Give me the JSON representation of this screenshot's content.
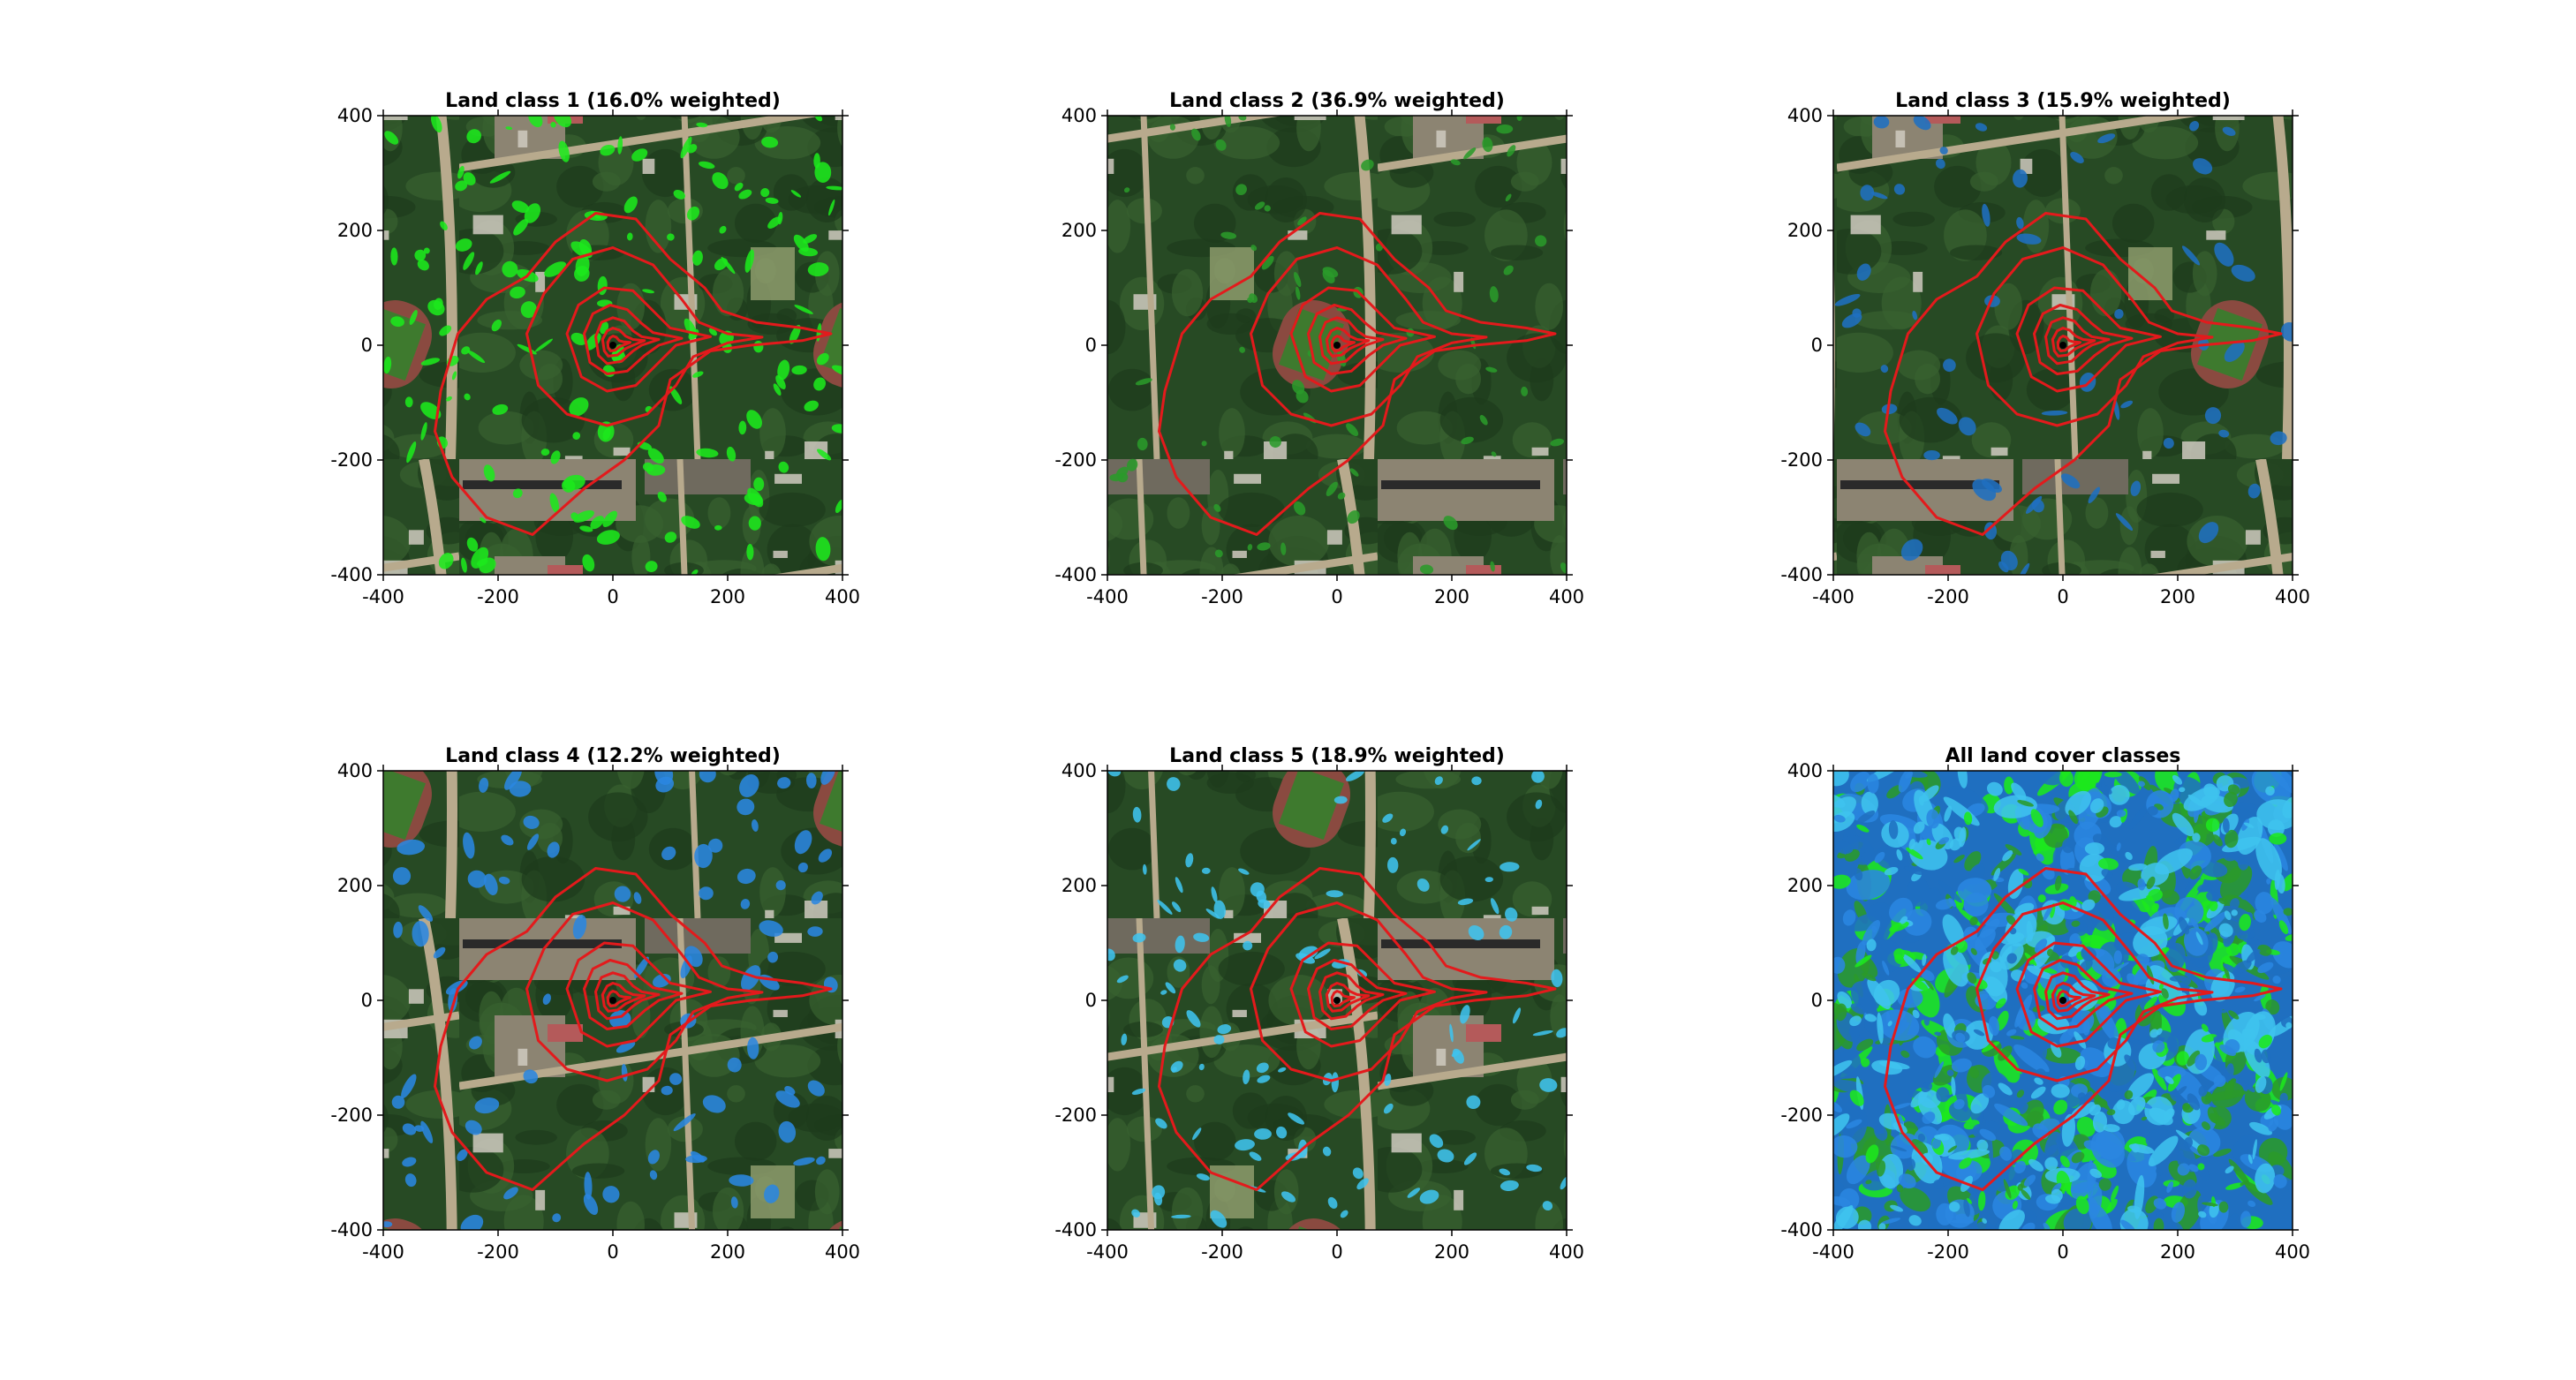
{
  "figure": {
    "panels": [
      {
        "title": "Land class 1 (16.0% weighted)",
        "overlay_color": "#1de81d",
        "mode": "single"
      },
      {
        "title": "Land class 2 (36.9% weighted)",
        "overlay_color": "#2a9a2a",
        "mode": "single"
      },
      {
        "title": "Land class 3 (15.9% weighted)",
        "overlay_color": "#1f6fc0",
        "mode": "single"
      },
      {
        "title": "Land class 4 (12.2% weighted)",
        "overlay_color": "#2a86e0",
        "mode": "single"
      },
      {
        "title": "Land class 5 (18.9% weighted)",
        "overlay_color": "#3fc3ee",
        "mode": "single"
      },
      {
        "title": "All land cover classes",
        "overlay_color": "#1de81d",
        "mode": "all"
      }
    ],
    "contour_color": "#e31a1c",
    "background_colors": {
      "forest": "#274a24",
      "canopy": "#37612f",
      "built": "#8c8472",
      "road": "#b8aa8d",
      "field": "#93a070"
    }
  },
  "chart_data": {
    "type": "heatmap",
    "panel_count": 6,
    "xlim": [
      -400,
      400
    ],
    "ylim": [
      -400,
      400
    ],
    "xticks": [
      -400,
      -200,
      0,
      200,
      400
    ],
    "yticks": [
      -400,
      -200,
      0,
      200,
      400
    ],
    "titles": [
      "Land class 1 (16.0% weighted)",
      "Land class 2 (36.9% weighted)",
      "Land class 3 (15.9% weighted)",
      "Land class 4 (12.2% weighted)",
      "Land class 5 (18.9% weighted)",
      "All land cover classes"
    ],
    "weighted_percent": [
      16.0,
      36.9,
      15.9,
      12.2,
      18.9
    ],
    "class_colors": [
      "#1de81d",
      "#2a9a2a",
      "#1f6fc0",
      "#2a86e0",
      "#3fc3ee"
    ],
    "footprint_contours": [
      {
        "level": 1,
        "points": [
          [
            -300,
            -80
          ],
          [
            -270,
            20
          ],
          [
            -220,
            80
          ],
          [
            -150,
            120
          ],
          [
            -100,
            180
          ],
          [
            -30,
            230
          ],
          [
            40,
            220
          ],
          [
            100,
            150
          ],
          [
            160,
            100
          ],
          [
            190,
            60
          ],
          [
            250,
            40
          ],
          [
            330,
            30
          ],
          [
            380,
            20
          ],
          [
            330,
            8
          ],
          [
            240,
            0
          ],
          [
            170,
            -10
          ],
          [
            100,
            -60
          ],
          [
            80,
            -140
          ],
          [
            20,
            -200
          ],
          [
            -50,
            -250
          ],
          [
            -140,
            -330
          ],
          [
            -220,
            -300
          ],
          [
            -280,
            -230
          ],
          [
            -310,
            -150
          ]
        ]
      },
      {
        "level": 2,
        "points": [
          [
            -150,
            20
          ],
          [
            -120,
            90
          ],
          [
            -70,
            150
          ],
          [
            0,
            170
          ],
          [
            70,
            140
          ],
          [
            120,
            80
          ],
          [
            150,
            40
          ],
          [
            200,
            20
          ],
          [
            260,
            14
          ],
          [
            200,
            4
          ],
          [
            140,
            -20
          ],
          [
            110,
            -70
          ],
          [
            60,
            -120
          ],
          [
            -10,
            -140
          ],
          [
            -80,
            -120
          ],
          [
            -130,
            -70
          ]
        ]
      },
      {
        "level": 3,
        "points": [
          [
            -80,
            20
          ],
          [
            -60,
            70
          ],
          [
            -15,
            100
          ],
          [
            35,
            95
          ],
          [
            70,
            60
          ],
          [
            100,
            30
          ],
          [
            170,
            15
          ],
          [
            110,
            0
          ],
          [
            80,
            -30
          ],
          [
            40,
            -70
          ],
          [
            -10,
            -80
          ],
          [
            -55,
            -55
          ]
        ]
      },
      {
        "level": 4,
        "points": [
          [
            -50,
            20
          ],
          [
            -35,
            55
          ],
          [
            -5,
            70
          ],
          [
            25,
            62
          ],
          [
            50,
            38
          ],
          [
            70,
            22
          ],
          [
            120,
            12
          ],
          [
            80,
            0
          ],
          [
            55,
            -18
          ],
          [
            25,
            -45
          ],
          [
            -10,
            -50
          ],
          [
            -40,
            -30
          ]
        ]
      },
      {
        "level": 5,
        "points": [
          [
            -30,
            15
          ],
          [
            -20,
            40
          ],
          [
            0,
            48
          ],
          [
            20,
            42
          ],
          [
            35,
            25
          ],
          [
            50,
            15
          ],
          [
            80,
            10
          ],
          [
            50,
            0
          ],
          [
            35,
            -10
          ],
          [
            15,
            -28
          ],
          [
            -10,
            -32
          ],
          [
            -25,
            -18
          ]
        ]
      },
      {
        "level": 6,
        "points": [
          [
            -18,
            10
          ],
          [
            -10,
            25
          ],
          [
            0,
            30
          ],
          [
            12,
            26
          ],
          [
            22,
            16
          ],
          [
            35,
            10
          ],
          [
            55,
            8
          ],
          [
            35,
            0
          ],
          [
            22,
            -6
          ],
          [
            8,
            -17
          ],
          [
            -8,
            -19
          ],
          [
            -15,
            -10
          ]
        ]
      },
      {
        "level": 7,
        "points": [
          [
            -9,
            5
          ],
          [
            -5,
            13
          ],
          [
            0,
            16
          ],
          [
            6,
            14
          ],
          [
            11,
            8
          ],
          [
            18,
            6
          ],
          [
            30,
            5
          ],
          [
            18,
            0
          ],
          [
            11,
            -3
          ],
          [
            4,
            -9
          ],
          [
            -4,
            -10
          ],
          [
            -8,
            -5
          ]
        ]
      }
    ]
  }
}
